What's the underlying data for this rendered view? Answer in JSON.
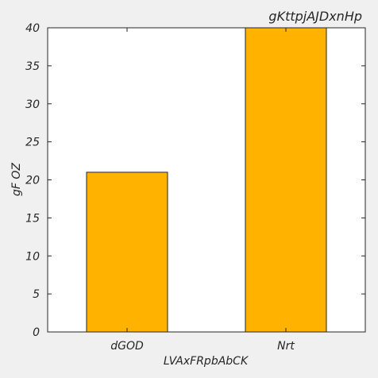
{
  "chart_data": {
    "type": "bar",
    "title": "gKttpjAJDxnHp",
    "xlabel": "LVAxFRpbAbCK",
    "ylabel": "gF OZ",
    "categories": [
      "dGOD",
      "Nrt"
    ],
    "values": [
      21,
      40
    ],
    "ylim": [
      0,
      40
    ],
    "yticks": [
      "0",
      "5",
      "10",
      "15",
      "20",
      "25",
      "30",
      "35",
      "40"
    ],
    "grid": false,
    "legend": "none",
    "colors": {
      "background": "#f0f0f0",
      "plot_background": "#ffffff",
      "bar": "#ffb300",
      "axis": "#262626"
    }
  }
}
